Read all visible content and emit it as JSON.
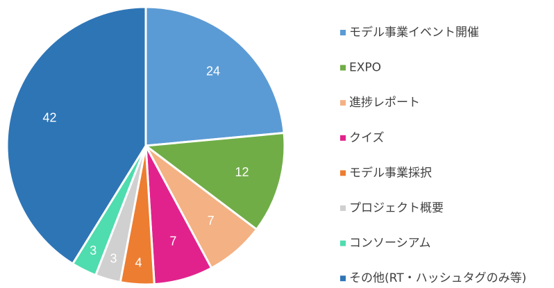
{
  "chart_data": {
    "type": "pie",
    "categories": [
      "モデル事業イベント開催",
      "EXPO",
      "進捗レポート",
      "クイズ",
      "モデル事業採択",
      "プロジェクト概要",
      "コンソーシアム",
      "その他(RT・ハッシュタグのみ等)"
    ],
    "values": [
      24,
      12,
      7,
      7,
      4,
      3,
      3,
      42
    ],
    "colors": [
      "#5b9bd5",
      "#70ad47",
      "#f4b183",
      "#e2228c",
      "#ed7d31",
      "#d0d0d0",
      "#4fdcae",
      "#2e75b6"
    ],
    "legend": "right"
  }
}
